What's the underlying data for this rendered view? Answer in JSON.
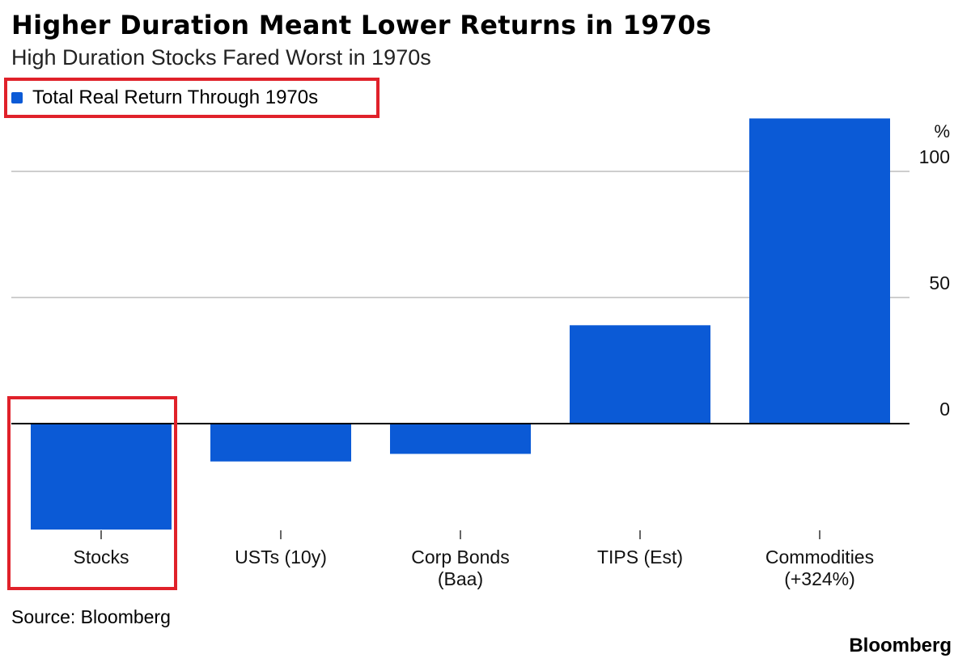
{
  "title": "Higher Duration Meant Lower Returns in 1970s",
  "subtitle": "High Duration Stocks Fared Worst in 1970s",
  "source": "Source: Bloomberg",
  "brand": "Bloomberg",
  "colors": {
    "bar": "#0b5ad6",
    "grid": "#bdbdbd",
    "axis": "#000000",
    "highlight": "#e0212a"
  },
  "chart_data": {
    "type": "bar",
    "categories": [
      [
        "Stocks"
      ],
      [
        "USTs (10y)"
      ],
      [
        "Corp Bonds",
        "(Baa)"
      ],
      [
        "TIPS (Est)"
      ],
      [
        "Commodities",
        "(+324%)"
      ]
    ],
    "series": [
      {
        "name": "Total Real Return Through 1970s",
        "values": [
          -42,
          -15,
          -12,
          39,
          121
        ]
      }
    ],
    "y_unit": "%",
    "yticks": [
      0,
      50,
      100
    ],
    "ylim": [
      -55,
      121
    ],
    "grid": true,
    "legend": "top-left"
  }
}
